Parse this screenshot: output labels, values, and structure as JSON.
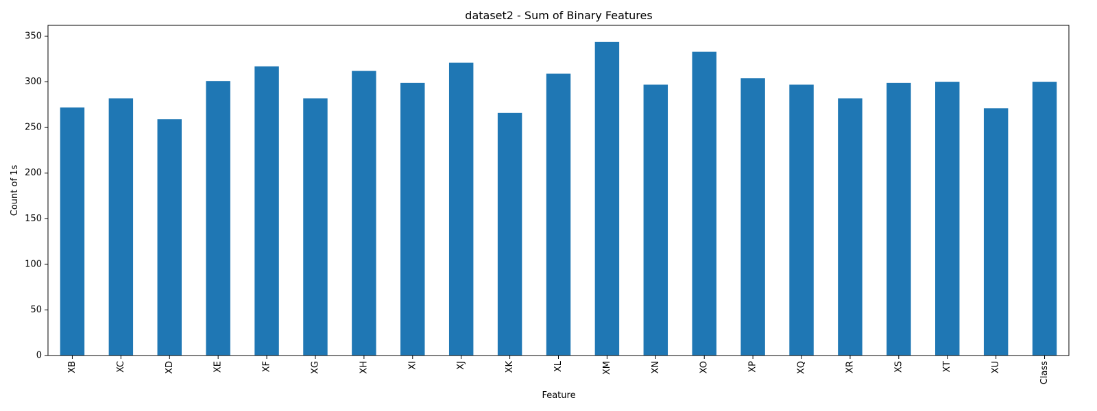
{
  "chart_data": {
    "type": "bar",
    "title": "dataset2 - Sum of Binary Features",
    "xlabel": "Feature",
    "ylabel": "Count of 1s",
    "categories": [
      "XB",
      "XC",
      "XD",
      "XE",
      "XF",
      "XG",
      "XH",
      "XI",
      "XJ",
      "XK",
      "XL",
      "XM",
      "XN",
      "XO",
      "XP",
      "XQ",
      "XR",
      "XS",
      "XT",
      "XU",
      "Class"
    ],
    "values": [
      272,
      282,
      259,
      301,
      317,
      282,
      312,
      299,
      321,
      266,
      309,
      344,
      297,
      333,
      304,
      297,
      282,
      299,
      300,
      271,
      300
    ],
    "ylim": [
      0,
      362
    ],
    "yticks": [
      0,
      50,
      100,
      150,
      200,
      250,
      300,
      350
    ],
    "grid": false,
    "bar_color": "#1f77b4",
    "xtick_rotation": "vertical"
  }
}
